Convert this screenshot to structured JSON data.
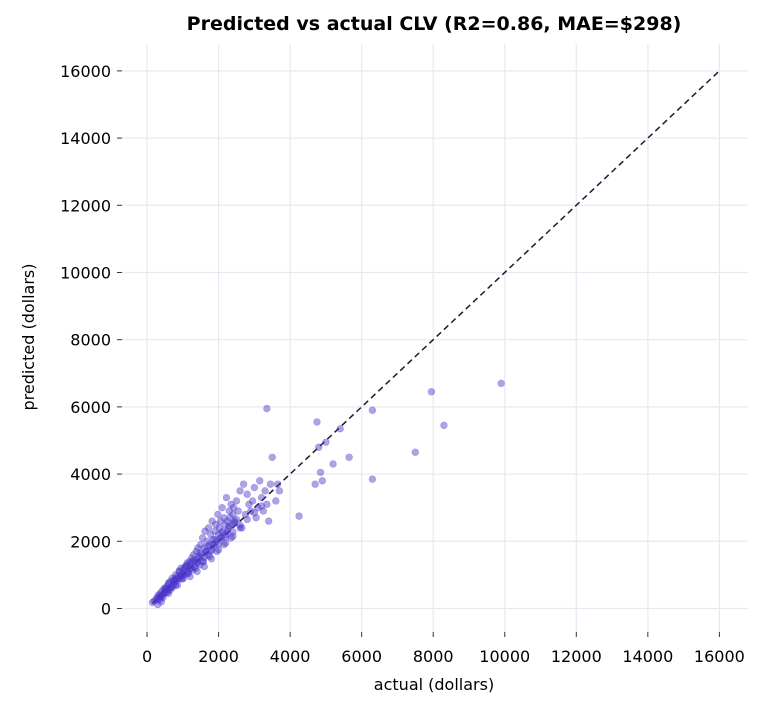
{
  "chart_data": {
    "type": "scatter",
    "title": "Predicted vs actual CLV  (R2=0.86, MAE=$298)",
    "xlabel": "actual (dollars)",
    "ylabel": "predicted (dollars)",
    "xlim": [
      -700,
      16800
    ],
    "ylim": [
      -700,
      16800
    ],
    "xticks": [
      0,
      2000,
      4000,
      6000,
      8000,
      10000,
      12000,
      14000,
      16000
    ],
    "yticks": [
      0,
      2000,
      4000,
      6000,
      8000,
      10000,
      12000,
      14000,
      16000
    ],
    "grid": true,
    "reference_line": {
      "from": [
        150,
        150
      ],
      "to": [
        16000,
        16000
      ],
      "style": "dashed"
    },
    "series": [
      {
        "marker_color": "#4a35c9",
        "x": [
          150,
          200,
          250,
          280,
          300,
          320,
          350,
          370,
          400,
          420,
          450,
          480,
          500,
          520,
          550,
          580,
          600,
          620,
          650,
          680,
          700,
          720,
          750,
          780,
          800,
          820,
          850,
          880,
          900,
          920,
          950,
          980,
          1000,
          1020,
          1050,
          1080,
          1100,
          1120,
          1150,
          1180,
          1200,
          1220,
          1250,
          1280,
          1300,
          1320,
          1350,
          1380,
          1400,
          1420,
          1450,
          1480,
          1500,
          1520,
          1550,
          1580,
          1600,
          1620,
          1650,
          1680,
          1700,
          1720,
          1750,
          1780,
          1800,
          1820,
          1850,
          1880,
          1900,
          1920,
          1950,
          1980,
          2000,
          2020,
          2050,
          2080,
          2100,
          2120,
          2150,
          2180,
          2200,
          2220,
          2250,
          2280,
          2300,
          2320,
          2350,
          2380,
          2400,
          2420,
          2450,
          2500,
          2550,
          2600,
          2650,
          2700,
          2750,
          2800,
          2850,
          2900,
          2950,
          3000,
          3050,
          3100,
          3150,
          3200,
          3250,
          3300,
          3350,
          3400,
          3450,
          3500,
          3600,
          3700,
          300,
          400,
          500,
          600,
          700,
          800,
          900,
          1000,
          1100,
          1200,
          1300,
          1400,
          1500,
          1600,
          1700,
          1800,
          1900,
          2000,
          2100,
          2200,
          2300,
          2400,
          2500,
          2600,
          350,
          450,
          550,
          650,
          750,
          850,
          950,
          1050,
          1150,
          1250,
          1350,
          1450,
          1550,
          1650,
          1750,
          1850,
          1950,
          2050,
          2150,
          2250,
          2350,
          2450,
          400,
          600,
          800,
          1000,
          1200,
          1400,
          1600,
          1800,
          2000,
          2200,
          2400,
          2600,
          2800,
          3000,
          3200,
          3350,
          3650,
          4250,
          4700,
          4750,
          4800,
          4850,
          4900,
          5000,
          5200,
          5400,
          5650,
          6300,
          6300,
          7500,
          7950,
          8300,
          9900
        ],
        "y": [
          180,
          220,
          260,
          330,
          280,
          400,
          350,
          450,
          380,
          520,
          420,
          600,
          470,
          560,
          650,
          520,
          720,
          600,
          800,
          640,
          900,
          700,
          850,
          760,
          1000,
          820,
          950,
          900,
          1100,
          880,
          1200,
          980,
          1050,
          1150,
          1000,
          1250,
          1100,
          1350,
          1050,
          1400,
          1300,
          1200,
          1500,
          1150,
          1600,
          1250,
          1450,
          1700,
          1350,
          1800,
          1500,
          1300,
          1900,
          1600,
          2100,
          1400,
          1800,
          2300,
          1700,
          2000,
          1600,
          2400,
          1900,
          2200,
          1750,
          2600,
          2050,
          1900,
          2300,
          2500,
          2000,
          2800,
          2200,
          2400,
          2600,
          2100,
          3000,
          2300,
          2700,
          2500,
          2200,
          3300,
          2600,
          2400,
          2900,
          2700,
          3100,
          2500,
          2800,
          3000,
          2600,
          3200,
          2900,
          3500,
          2400,
          3700,
          2800,
          3400,
          3100,
          2900,
          3200,
          3600,
          2700,
          3000,
          3800,
          3300,
          2900,
          3500,
          3100,
          2600,
          3700,
          4500,
          3200,
          3500,
          120,
          350,
          580,
          760,
          620,
          900,
          1120,
          880,
          1280,
          950,
          1420,
          1100,
          1650,
          1250,
          1850,
          1480,
          2050,
          1750,
          2250,
          1950,
          2450,
          2150,
          2650,
          2400,
          260,
          330,
          480,
          560,
          820,
          700,
          980,
          1230,
          1050,
          1380,
          1200,
          1560,
          1400,
          1700,
          1550,
          1900,
          1700,
          2100,
          1900,
          2300,
          2100,
          2550,
          200,
          450,
          680,
          900,
          1180,
          1380,
          1520,
          1720,
          1920,
          2120,
          2280,
          2480,
          2650,
          2850,
          3050,
          5950,
          3700,
          2750,
          3700,
          5550,
          4800,
          4050,
          3800,
          4950,
          4300,
          5350,
          4500,
          5900,
          3850,
          4650,
          6450,
          5450,
          6700
        ]
      }
    ]
  }
}
